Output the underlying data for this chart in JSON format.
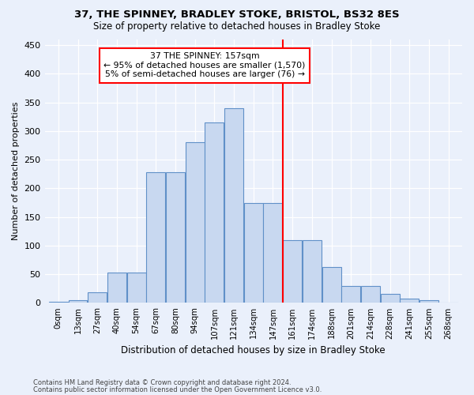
{
  "title1": "37, THE SPINNEY, BRADLEY STOKE, BRISTOL, BS32 8ES",
  "title2": "Size of property relative to detached houses in Bradley Stoke",
  "xlabel": "Distribution of detached houses by size in Bradley Stoke",
  "ylabel": "Number of detached properties",
  "footer1": "Contains HM Land Registry data © Crown copyright and database right 2024.",
  "footer2": "Contains public sector information licensed under the Open Government Licence v3.0.",
  "bin_labels": [
    "0sqm",
    "13sqm",
    "27sqm",
    "40sqm",
    "54sqm",
    "67sqm",
    "80sqm",
    "94sqm",
    "107sqm",
    "121sqm",
    "134sqm",
    "147sqm",
    "161sqm",
    "174sqm",
    "188sqm",
    "201sqm",
    "214sqm",
    "228sqm",
    "241sqm",
    "255sqm",
    "268sqm"
  ],
  "bar_values": [
    2,
    5,
    19,
    53,
    53,
    228,
    228,
    280,
    315,
    340,
    175,
    175,
    109,
    109,
    62,
    30,
    30,
    16,
    7,
    5,
    1
  ],
  "bar_color": "#c8d8f0",
  "bar_edge_color": "#6090c8",
  "vline_color": "red",
  "annotation_text": "37 THE SPINNEY: 157sqm\n← 95% of detached houses are smaller (1,570)\n5% of semi-detached houses are larger (76) →",
  "annotation_box_color": "white",
  "annotation_box_edge": "red",
  "ylim": [
    0,
    460
  ],
  "yticks": [
    0,
    50,
    100,
    150,
    200,
    250,
    300,
    350,
    400,
    450
  ],
  "bg_color": "#eaf0fb",
  "plot_bg_color": "#eaf0fb"
}
